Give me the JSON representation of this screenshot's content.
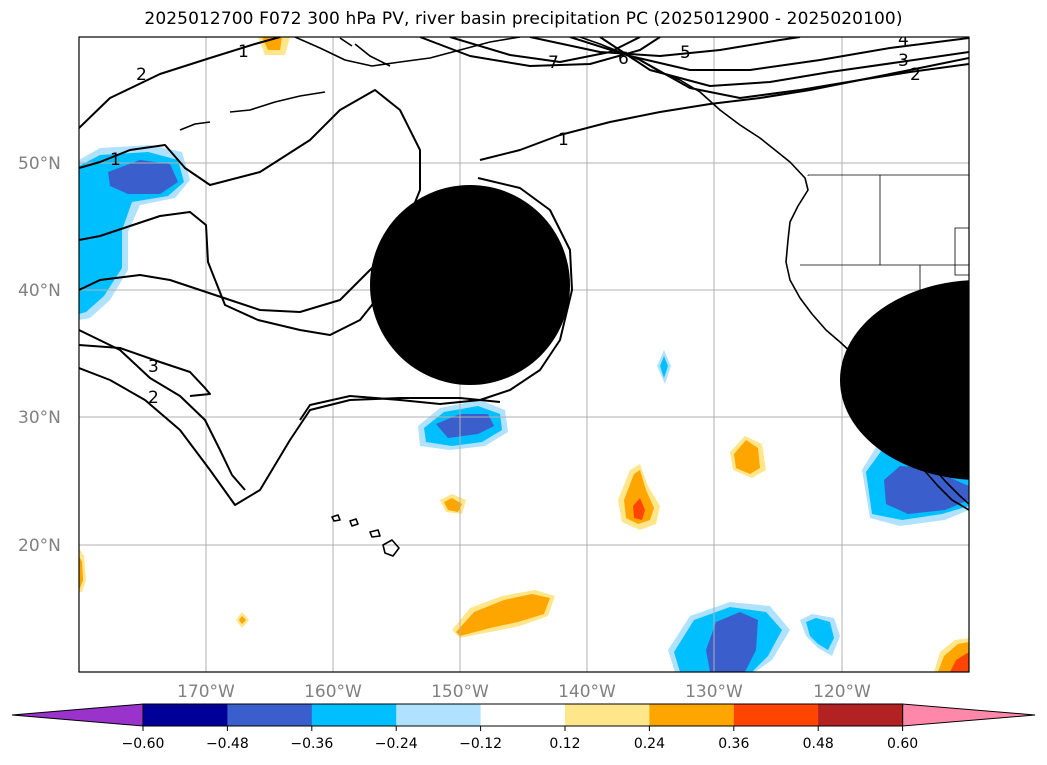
{
  "title": "2025012700 F072 300 hPa PV, river basin precipitation PC (2025012900 - 2025020100)",
  "lat_labels": [
    "50°N",
    "40°N",
    "30°N",
    "20°N"
  ],
  "lon_labels": [
    "170°W",
    "160°W",
    "150°W",
    "140°W",
    "130°W",
    "120°W"
  ],
  "colorbar": {
    "tick_labels": [
      "−0.60",
      "−0.48",
      "−0.36",
      "−0.24",
      "−0.12",
      "0.12",
      "0.24",
      "0.36",
      "0.48",
      "0.60"
    ],
    "colors": [
      "#9933cc",
      "#000099",
      "#3a5fcd",
      "#00bfff",
      "#b0e2ff",
      "#ffffff",
      "#ffe68a",
      "#ffa500",
      "#ff4500",
      "#b22222",
      "#ff88aa"
    ]
  },
  "contour_labels": {
    "c1": "1",
    "c2": "2",
    "c3": "3",
    "c4": "4",
    "c5": "5",
    "c6": "6",
    "c7": "7"
  },
  "extent": {
    "lon_min": -180,
    "lon_max": -110,
    "lat_min": 10,
    "lat_max": 60
  }
}
